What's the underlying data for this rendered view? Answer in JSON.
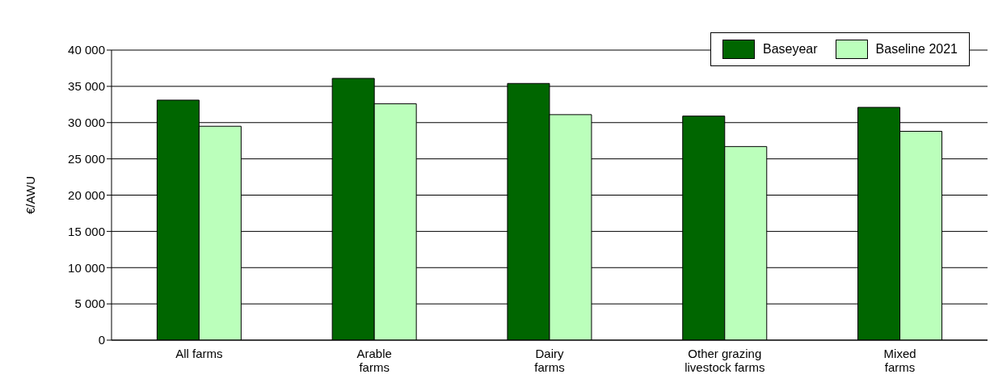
{
  "chart_data": {
    "type": "bar",
    "ylabel": "€/AWU",
    "categories": [
      "All farms",
      "Arable\nfarms",
      "Dairy\nfarms",
      "Other grazing\nlivestock farms",
      "Mixed\nfarms"
    ],
    "series": [
      {
        "name": "Baseyear",
        "color": "#006600",
        "values": [
          33100,
          36100,
          35400,
          30900,
          32100
        ]
      },
      {
        "name": "Baseline 2021",
        "color": "#bbffbb",
        "values": [
          29500,
          32600,
          31100,
          26700,
          28800
        ]
      }
    ],
    "ylim": [
      0,
      40000
    ],
    "yticks": [
      {
        "value": 0,
        "label": "0"
      },
      {
        "value": 5000,
        "label": "5 000"
      },
      {
        "value": 10000,
        "label": "10 000"
      },
      {
        "value": 15000,
        "label": "15 000"
      },
      {
        "value": 20000,
        "label": "20 000"
      },
      {
        "value": 25000,
        "label": "25 000"
      },
      {
        "value": 30000,
        "label": "30 000"
      },
      {
        "value": 35000,
        "label": "35 000"
      },
      {
        "value": 40000,
        "label": "40 000"
      }
    ],
    "grid": "y",
    "legend": "top right"
  }
}
